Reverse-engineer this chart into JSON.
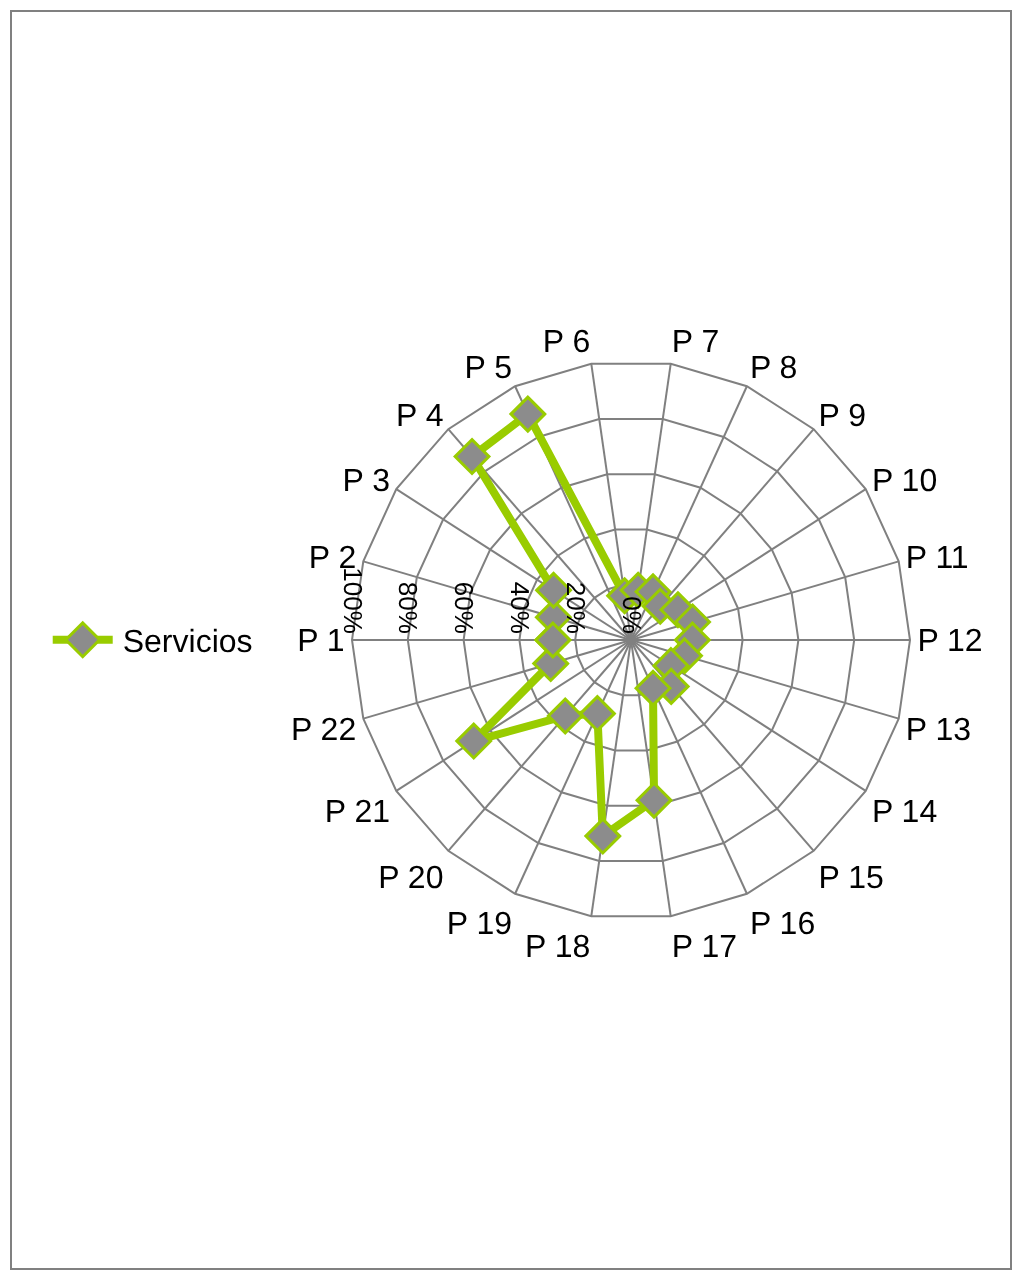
{
  "chart_data": {
    "type": "radar",
    "categories": [
      "P 1",
      "P 2",
      "P 3",
      "P 4",
      "P 5",
      "P 6",
      "P 7",
      "P 8",
      "P 9",
      "P 10",
      "P 11",
      "P 12",
      "P 13",
      "P 14",
      "P 15",
      "P 16",
      "P 17",
      "P 18",
      "P 19",
      "P 20",
      "P 21",
      "P 22"
    ],
    "series": [
      {
        "name": "Servicios",
        "color": "#99cc00",
        "values": [
          28,
          29,
          33,
          87,
          89,
          16,
          18,
          19,
          16,
          20,
          23,
          22,
          20,
          17,
          22,
          19,
          58,
          71,
          29,
          36,
          67,
          30
        ]
      }
    ],
    "ylim": [
      0,
      100
    ],
    "yticks": [
      {
        "value": 0,
        "label": "0%"
      },
      {
        "value": 20,
        "label": "20%"
      },
      {
        "value": 40,
        "label": "40%"
      },
      {
        "value": 60,
        "label": "60%"
      },
      {
        "value": 80,
        "label": "80%"
      },
      {
        "value": 100,
        "label": "100%"
      }
    ],
    "grid": true,
    "legend": "left",
    "marker": "diamond",
    "line_style": "solid"
  }
}
